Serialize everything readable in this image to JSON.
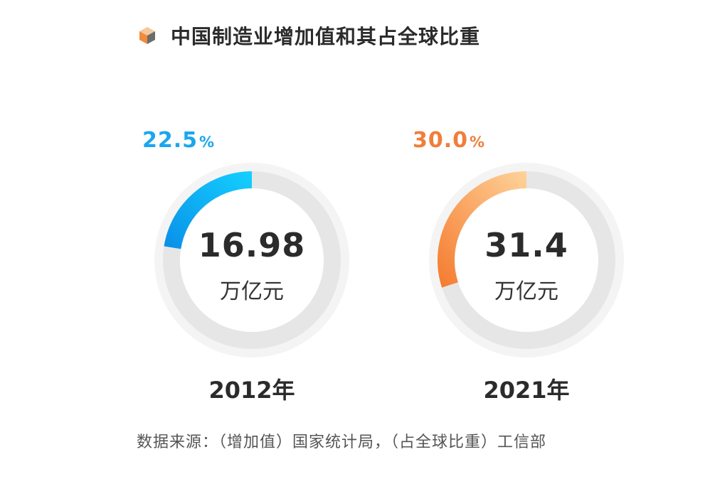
{
  "chart_data": {
    "type": "pie",
    "title": "中国制造业增加值和其占全球比重",
    "charts": [
      {
        "year_label": "2012年",
        "share_value": "22.5",
        "share_unit": "%",
        "share_fraction": 0.225,
        "value": "16.98",
        "value_unit": "万亿元",
        "color_start": "#0a8fe8",
        "color_end": "#14d0ff"
      },
      {
        "year_label": "2021年",
        "share_value": "30.0",
        "share_unit": "%",
        "share_fraction": 0.3,
        "value": "31.4",
        "value_unit": "万亿元",
        "color_start": "#f47a2e",
        "color_end": "#ffd39a"
      }
    ],
    "track_color": "#e6e6e6",
    "ring_bg_color": "#f4f4f4",
    "source": "数据来源：（增加值）国家统计局，（占全球比重）工信部"
  },
  "title_icon": "cube-icon"
}
